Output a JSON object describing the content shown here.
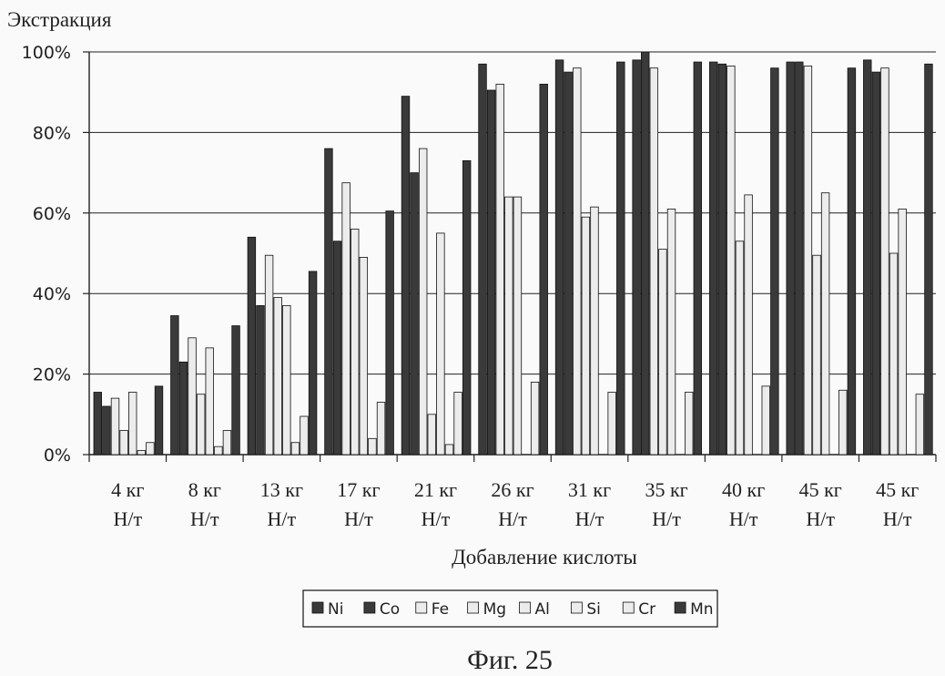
{
  "figure_caption": "Фиг. 25",
  "colors": {
    "background": "#fafafa",
    "dark": "#3a3a3a",
    "light": "#ececec",
    "grid": "#222222"
  },
  "chart_data": {
    "type": "bar",
    "title": "",
    "ylabel": "Экстракция",
    "xlabel": "Добавление кислоты",
    "ylim": [
      0,
      100
    ],
    "y_ticks": [
      "0%",
      "20%",
      "40%",
      "60%",
      "80%",
      "100%"
    ],
    "grid": "horizontal",
    "legend_position": "bottom",
    "categories": [
      [
        "4 кг",
        "Н/т"
      ],
      [
        "8 кг",
        "Н/т"
      ],
      [
        "13 кг",
        "Н/т"
      ],
      [
        "17 кг",
        "Н/т"
      ],
      [
        "21 кг",
        "Н/т"
      ],
      [
        "26 кг",
        "Н/т"
      ],
      [
        "31 кг",
        "Н/т"
      ],
      [
        "35 кг",
        "Н/т"
      ],
      [
        "40 кг",
        "Н/т"
      ],
      [
        "45 кг",
        "Н/т"
      ],
      [
        "45 кг",
        "Н/т"
      ]
    ],
    "series": [
      {
        "name": "Ni",
        "fill": "dark",
        "values": [
          15.5,
          34.5,
          54,
          76,
          89,
          97,
          98,
          98,
          97.5,
          97.5,
          98
        ]
      },
      {
        "name": "Co",
        "fill": "dark",
        "values": [
          12,
          23,
          37,
          53,
          70,
          90.5,
          95,
          100,
          97,
          97.5,
          95
        ]
      },
      {
        "name": "Fe",
        "fill": "light",
        "values": [
          14,
          29,
          49.5,
          67.5,
          76,
          92,
          96,
          96,
          96.5,
          96.5,
          96
        ]
      },
      {
        "name": "Mg",
        "fill": "light",
        "values": [
          6,
          15,
          39,
          56,
          10,
          64,
          59,
          51,
          53,
          49.5,
          50
        ]
      },
      {
        "name": "Al",
        "fill": "light",
        "values": [
          15.5,
          26.5,
          37,
          49,
          55,
          64,
          61.5,
          61,
          64.5,
          65,
          61
        ]
      },
      {
        "name": "Si",
        "fill": "light",
        "values": [
          1,
          2,
          3,
          4,
          2.5,
          0,
          0,
          0,
          0,
          0,
          0
        ]
      },
      {
        "name": "Cr",
        "fill": "light",
        "values": [
          3,
          6,
          9.5,
          13,
          15.5,
          18,
          15.5,
          15.5,
          17,
          16,
          15
        ]
      },
      {
        "name": "Mn",
        "fill": "dark",
        "values": [
          17,
          32,
          45.5,
          60.5,
          73,
          92,
          97.5,
          97.5,
          96,
          96,
          97
        ]
      }
    ]
  }
}
